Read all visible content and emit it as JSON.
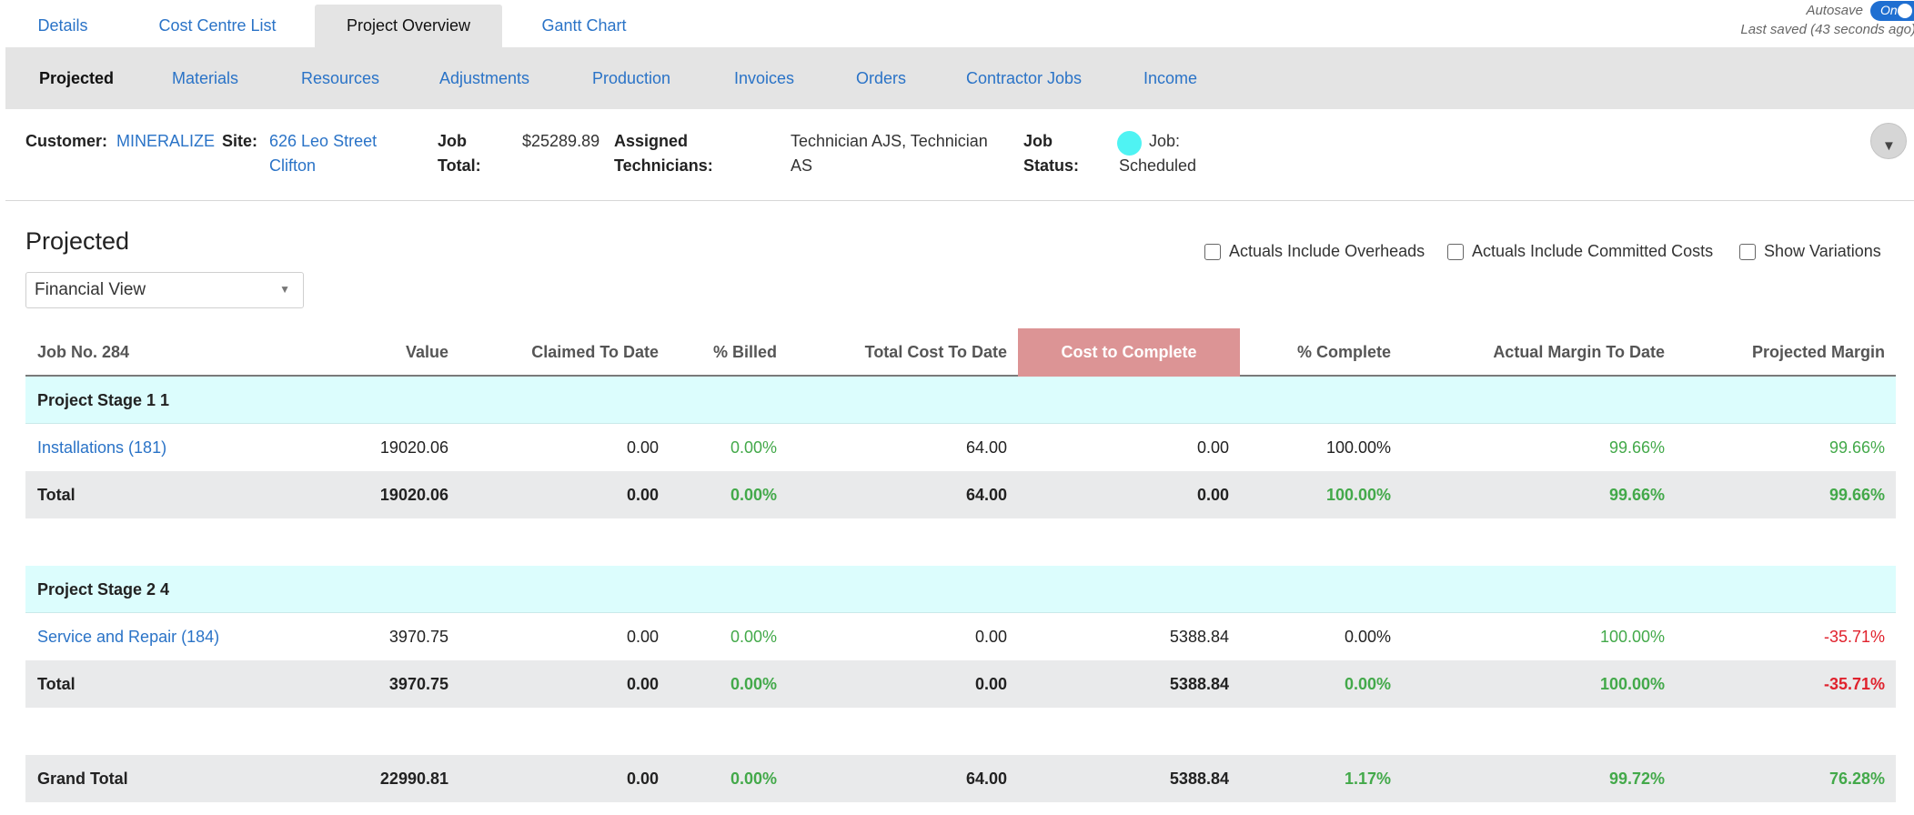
{
  "top_tabs": [
    {
      "label": "Details"
    },
    {
      "label": "Cost Centre List"
    },
    {
      "label": "Project Overview",
      "active": true
    },
    {
      "label": "Gantt Chart"
    }
  ],
  "autosave": {
    "label": "Autosave",
    "toggle": "On",
    "last_saved": "Last saved (43 seconds ago)"
  },
  "sub_tabs": [
    {
      "label": "Projected",
      "active": true
    },
    {
      "label": "Materials"
    },
    {
      "label": "Resources"
    },
    {
      "label": "Adjustments"
    },
    {
      "label": "Production"
    },
    {
      "label": "Invoices"
    },
    {
      "label": "Orders"
    },
    {
      "label": "Contractor Jobs"
    },
    {
      "label": "Income"
    }
  ],
  "info": {
    "customer_label": "Customer:",
    "customer": "MINERALIZE",
    "site_label": "Site:",
    "site_line1": "626 Leo Street",
    "site_line2": "Clifton",
    "job_total_label_1": "Job",
    "job_total_label_2": "Total:",
    "job_total": "$25289.89",
    "technicians_label_1": "Assigned",
    "technicians_label_2": "Technicians:",
    "technicians_line1": "Technician AJS, Technician",
    "technicians_line2": "AS",
    "status_label_1": "Job",
    "status_label_2": "Status:",
    "status_line1": "Job:",
    "status_line2": "Scheduled",
    "status_color": "#4ff3f3"
  },
  "section": {
    "title": "Projected",
    "view_select": "Financial View",
    "checkboxes": [
      {
        "label": "Actuals Include Overheads",
        "checked": false
      },
      {
        "label": "Actuals Include Committed Costs",
        "checked": false
      },
      {
        "label": "Show Variations",
        "checked": false
      }
    ]
  },
  "table": {
    "headers": [
      "Job No. 284",
      "Value",
      "Claimed To Date",
      "% Billed",
      "Total Cost To Date",
      "Cost to Complete",
      "% Complete",
      "Actual Margin To Date",
      "Projected Margin"
    ],
    "highlight_color": "#dc9495",
    "stages": [
      {
        "name": "Project Stage 1 1",
        "item": [
          "Installations (181)",
          "19020.06",
          "0.00",
          "0.00%",
          "64.00",
          "0.00",
          "100.00%",
          "99.66%",
          "99.66%"
        ],
        "total": [
          "Total",
          "19020.06",
          "0.00",
          "0.00%",
          "64.00",
          "0.00",
          "100.00%",
          "99.66%",
          "99.66%"
        ]
      },
      {
        "name": "Project Stage 2 4",
        "item": [
          "Service and Repair (184)",
          "3970.75",
          "0.00",
          "0.00%",
          "0.00",
          "5388.84",
          "0.00%",
          "100.00%",
          "-35.71%"
        ],
        "total": [
          "Total",
          "3970.75",
          "0.00",
          "0.00%",
          "0.00",
          "5388.84",
          "0.00%",
          "100.00%",
          "-35.71%"
        ]
      }
    ],
    "grand_total": [
      "Grand Total",
      "22990.81",
      "0.00",
      "0.00%",
      "64.00",
      "5388.84",
      "1.17%",
      "99.72%",
      "76.28%"
    ]
  }
}
